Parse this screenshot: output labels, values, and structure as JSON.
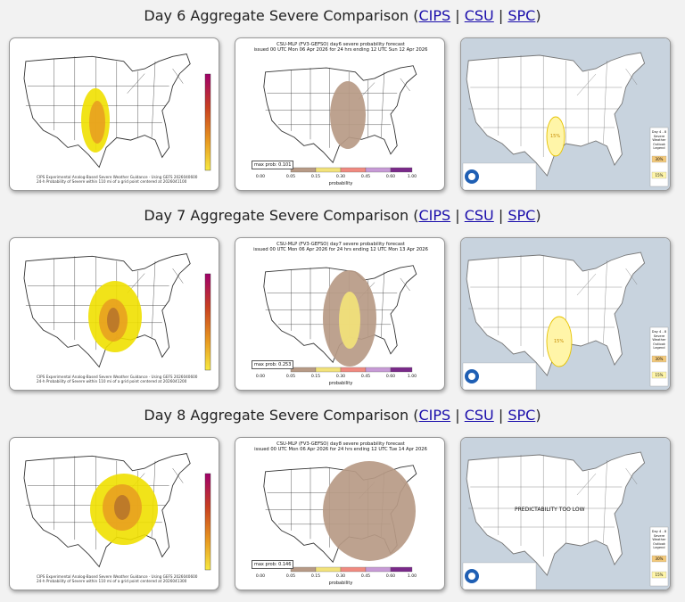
{
  "colors": {
    "link": "#1a0dab",
    "cips_yellow": "#f0e000",
    "cips_orange": "#e8a020",
    "cips_brown": "#b8762a",
    "csu_tan": "#b79a86",
    "csu_yellow": "#f2e27a",
    "spc_yellow": "#fff5a8",
    "spc_outline": "#e6c200",
    "card_bg": "#ffffff"
  },
  "sections": [
    {
      "heading_prefix": "Day 6 Aggregate Severe Comparison (",
      "links": [
        "CIPS",
        "CSU",
        "SPC"
      ],
      "separator": " | ",
      "heading_suffix": ")",
      "cips": {
        "footer_line1": "CIPS Experimental Analog-Based Severe Weather Guidance · Using GEFS 2026040600",
        "footer_line2": "24-h Probability of Severe within 110 mi of a grid point centered at 2026041100"
      },
      "csu": {
        "title_line1": "CSU-MLP (FV3-GEFSO) day6 severe probability forecast",
        "title_line2": "issued 00 UTC Mon 06 Apr 2026 for 24 hrs ending 12 UTC Sun 12 Apr 2026",
        "max_prob": "max prob: 0.101",
        "ticks": [
          "0.00",
          "0.05",
          "0.15",
          "0.30",
          "0.45",
          "0.60",
          "1.00"
        ],
        "axis_label": "probability"
      },
      "spc": {
        "label_main": "",
        "prob_label": "15%",
        "legend_title": "Day 4 - 8 Severe Weather Outlook Legend",
        "legend_15": "15%",
        "legend_30": "30%"
      }
    },
    {
      "heading_prefix": "Day 7 Aggregate Severe Comparison (",
      "links": [
        "CIPS",
        "CSU",
        "SPC"
      ],
      "separator": " | ",
      "heading_suffix": ")",
      "cips": {
        "footer_line1": "CIPS Experimental Analog-Based Severe Weather Guidance · Using GEFS 2026040600",
        "footer_line2": "24-h Probability of Severe within 110 mi of a grid point centered at 2026041200"
      },
      "csu": {
        "title_line1": "CSU-MLP (FV3-GEFSO) day7 severe probability forecast",
        "title_line2": "issued 00 UTC Mon 06 Apr 2026 for 24 hrs ending 12 UTC Mon 13 Apr 2026",
        "max_prob": "max prob: 0.253",
        "ticks": [
          "0.00",
          "0.05",
          "0.15",
          "0.30",
          "0.45",
          "0.60",
          "1.00"
        ],
        "axis_label": "probability"
      },
      "spc": {
        "label_main": "",
        "prob_label": "15%",
        "legend_title": "Day 4 - 8 Severe Weather Outlook Legend",
        "legend_15": "15%",
        "legend_30": "30%"
      }
    },
    {
      "heading_prefix": "Day 8 Aggregate Severe Comparison (",
      "links": [
        "CIPS",
        "CSU",
        "SPC"
      ],
      "separator": " | ",
      "heading_suffix": ")",
      "cips": {
        "footer_line1": "CIPS Experimental Analog-Based Severe Weather Guidance · Using GEFS 2026040600",
        "footer_line2": "24-h Probability of Severe within 110 mi of a grid point centered at 2026041300"
      },
      "csu": {
        "title_line1": "CSU-MLP (FV3-GEFSO) day8 severe probability forecast",
        "title_line2": "issued 00 UTC Mon 06 Apr 2026 for 24 hrs ending 12 UTC Tue 14 Apr 2026",
        "max_prob": "max prob: 0.146",
        "ticks": [
          "0.00",
          "0.05",
          "0.15",
          "0.30",
          "0.45",
          "0.60",
          "1.00"
        ],
        "axis_label": "probability"
      },
      "spc": {
        "label_main": "PREDICTABILITY TOO LOW",
        "prob_label": "",
        "legend_title": "Day 4 - 8 Severe Weather Outlook Legend",
        "legend_15": "15%",
        "legend_30": "30%"
      }
    }
  ]
}
